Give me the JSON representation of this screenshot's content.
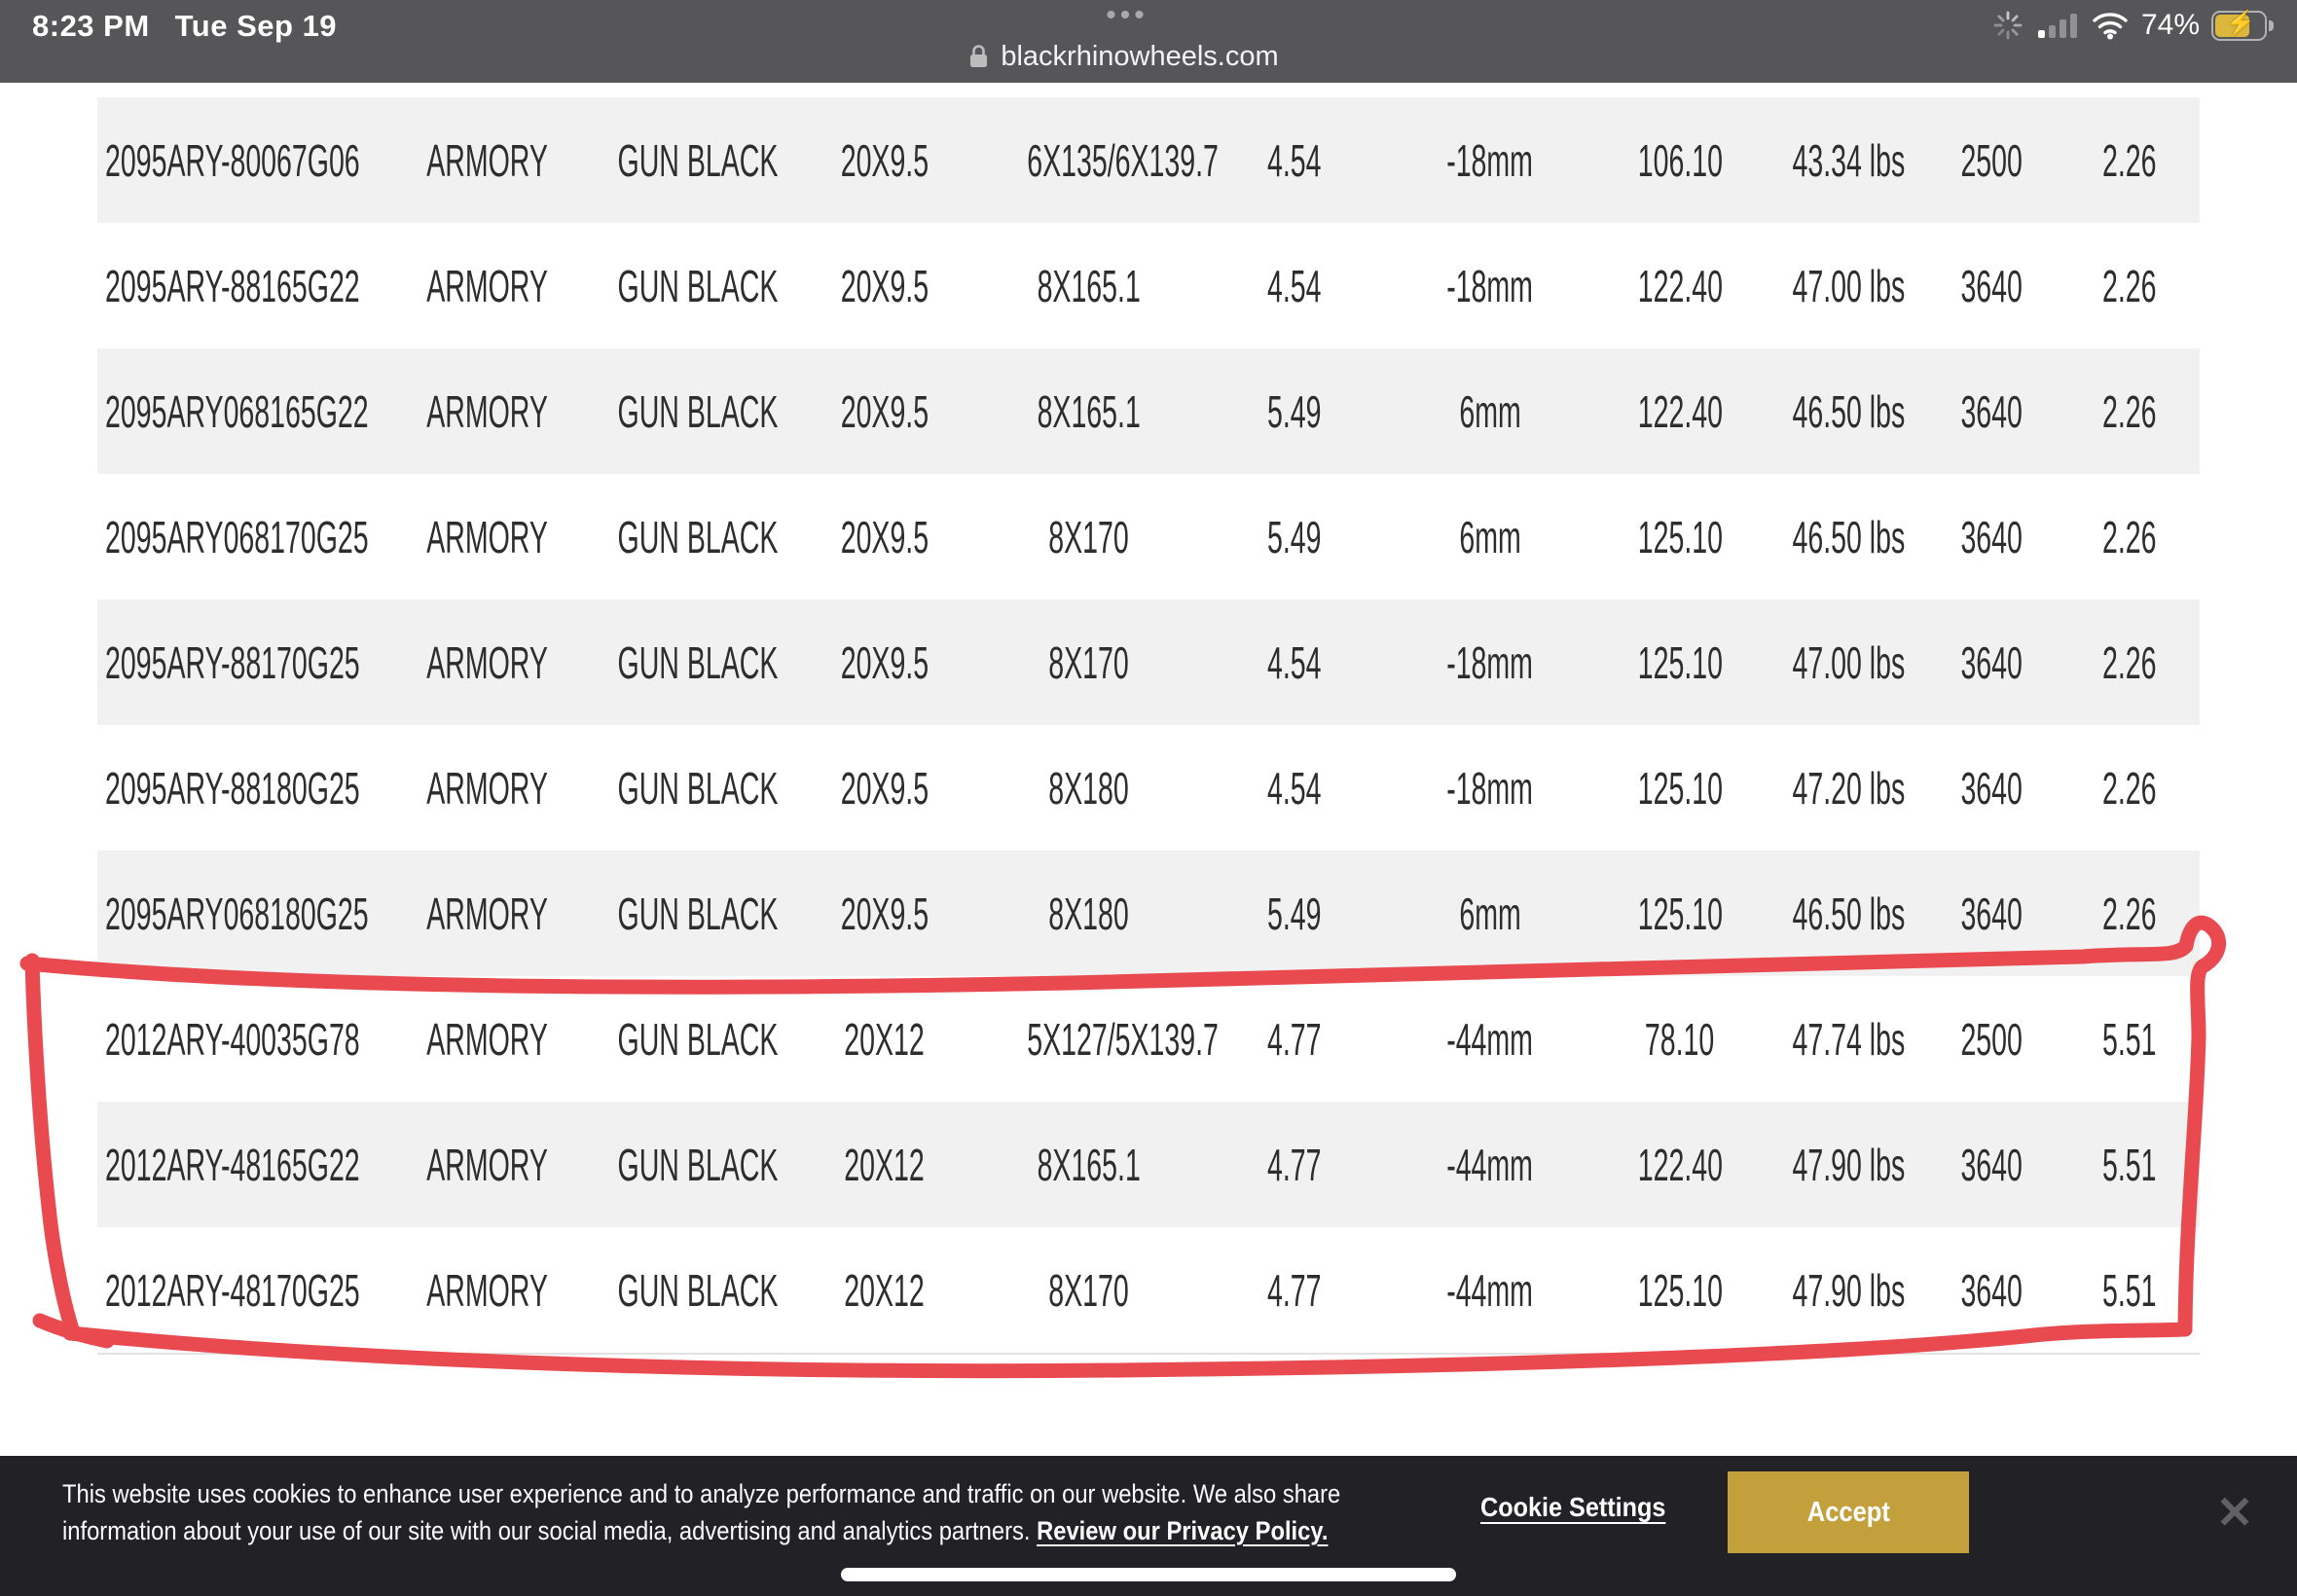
{
  "status_bar": {
    "time": "8:23 PM",
    "date": "Tue Sep 19",
    "ellipsis": "•••",
    "url": "blackrhinowheels.com",
    "battery_percent": "74%",
    "bolt_glyph": "⚡"
  },
  "table": {
    "rows": [
      [
        "2095ARY-80067G06",
        "ARMORY",
        "GUN BLACK",
        "20X9.5",
        "6X135/6X139.7",
        "4.54",
        "-18mm",
        "106.10",
        "43.34 lbs",
        "2500",
        "2.26"
      ],
      [
        "2095ARY-88165G22",
        "ARMORY",
        "GUN BLACK",
        "20X9.5",
        "8X165.1",
        "4.54",
        "-18mm",
        "122.40",
        "47.00 lbs",
        "3640",
        "2.26"
      ],
      [
        "2095ARY068165G22",
        "ARMORY",
        "GUN BLACK",
        "20X9.5",
        "8X165.1",
        "5.49",
        "6mm",
        "122.40",
        "46.50 lbs",
        "3640",
        "2.26"
      ],
      [
        "2095ARY068170G25",
        "ARMORY",
        "GUN BLACK",
        "20X9.5",
        "8X170",
        "5.49",
        "6mm",
        "125.10",
        "46.50 lbs",
        "3640",
        "2.26"
      ],
      [
        "2095ARY-88170G25",
        "ARMORY",
        "GUN BLACK",
        "20X9.5",
        "8X170",
        "4.54",
        "-18mm",
        "125.10",
        "47.00 lbs",
        "3640",
        "2.26"
      ],
      [
        "2095ARY-88180G25",
        "ARMORY",
        "GUN BLACK",
        "20X9.5",
        "8X180",
        "4.54",
        "-18mm",
        "125.10",
        "47.20 lbs",
        "3640",
        "2.26"
      ],
      [
        "2095ARY068180G25",
        "ARMORY",
        "GUN BLACK",
        "20X9.5",
        "8X180",
        "5.49",
        "6mm",
        "125.10",
        "46.50 lbs",
        "3640",
        "2.26"
      ],
      [
        "2012ARY-40035G78",
        "ARMORY",
        "GUN BLACK",
        "20X12",
        "5X127/5X139.7",
        "4.77",
        "-44mm",
        "78.10",
        "47.74 lbs",
        "2500",
        "5.51"
      ],
      [
        "2012ARY-48165G22",
        "ARMORY",
        "GUN BLACK",
        "20X12",
        "8X165.1",
        "4.77",
        "-44mm",
        "122.40",
        "47.90 lbs",
        "3640",
        "5.51"
      ],
      [
        "2012ARY-48170G25",
        "ARMORY",
        "GUN BLACK",
        "20X12",
        "8X170",
        "4.77",
        "-44mm",
        "125.10",
        "47.90 lbs",
        "3640",
        "5.51"
      ]
    ]
  },
  "annotation": {
    "marker_color": "#e84a50"
  },
  "cookie_banner": {
    "line1": "This website uses cookies to enhance user experience and to analyze performance and traffic on our website. We also share",
    "line2_prefix": "information about your use of our site with our social media, advertising and analytics partners. ",
    "privacy_link": "Review our Privacy Policy.",
    "settings_label": "Cookie Settings",
    "accept_label": "Accept",
    "close_glyph": "✕",
    "accept_color": "#c4a03c",
    "background_color": "#222226"
  }
}
